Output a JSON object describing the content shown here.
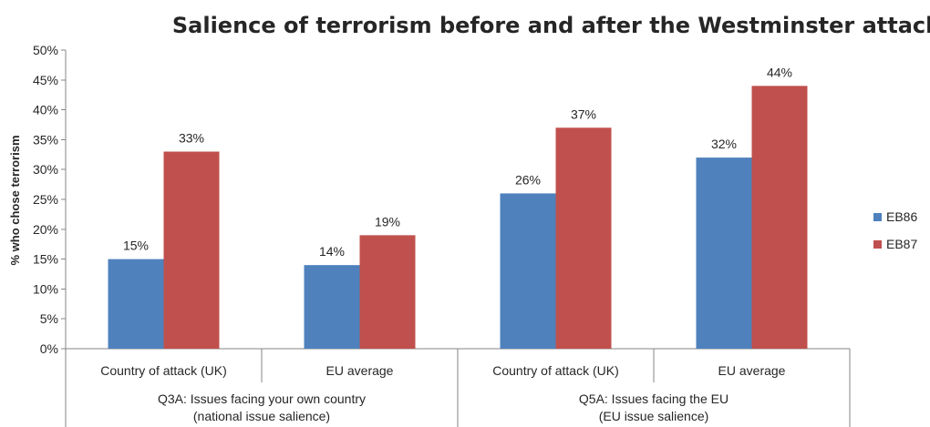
{
  "chart_data": {
    "type": "bar",
    "title": "Salience of terrorism before and after the Westminster attack",
    "ylabel": "% who chose terrorism",
    "xlabel": "",
    "ylim": [
      0,
      50
    ],
    "yticks": [
      "0%",
      "5%",
      "10%",
      "15%",
      "20%",
      "25%",
      "30%",
      "35%",
      "40%",
      "45%",
      "50%"
    ],
    "categories": [
      "Country of attack (UK)",
      "EU average",
      "Country of attack (UK)",
      "EU average"
    ],
    "groups": [
      {
        "line1": "Q3A: Issues facing your own country",
        "line2": "(national issue salience)"
      },
      {
        "line1": "Q5A: Issues facing the EU",
        "line2": "(EU issue salience)"
      }
    ],
    "series": [
      {
        "name": "EB86",
        "color": "#4f81bd",
        "values": [
          15,
          14,
          26,
          32
        ],
        "labels": [
          "15%",
          "14%",
          "26%",
          "32%"
        ]
      },
      {
        "name": "EB87",
        "color": "#c0504d",
        "values": [
          33,
          19,
          37,
          44
        ],
        "labels": [
          "33%",
          "19%",
          "37%",
          "44%"
        ]
      }
    ],
    "grid": false,
    "legend_position": "right"
  }
}
